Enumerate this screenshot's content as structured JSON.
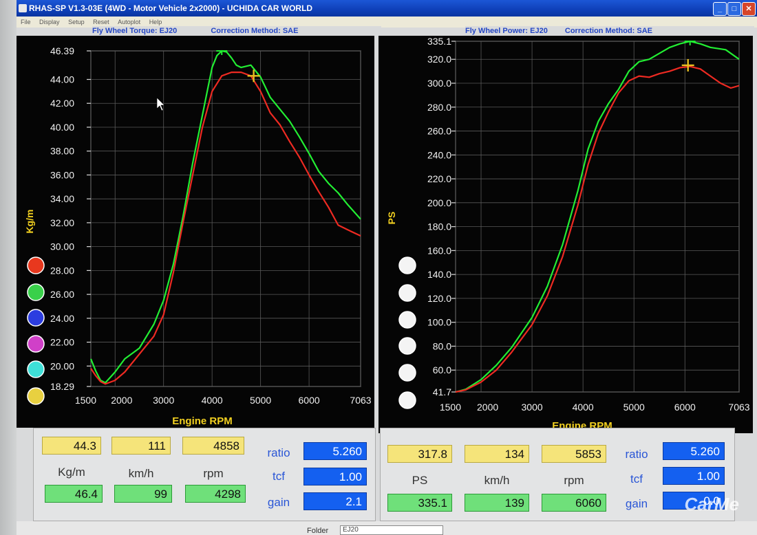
{
  "window": {
    "title": "RHAS-SP V1.3-03E (4WD - Motor Vehicle 2x2000) - UCHIDA CAR WORLD",
    "menu": [
      "File",
      "Display",
      "Setup",
      "Reset",
      "Autoplot",
      "Help"
    ]
  },
  "left_header": {
    "title": "Fly Wheel Torque: EJ20",
    "method": "Correction Method: SAE"
  },
  "right_header": {
    "title": "Fly Wheel Power: EJ20",
    "method": "Correction Method: SAE"
  },
  "colors": {
    "green_curve": "#22ee33",
    "red_curve": "#ee2a22",
    "marker": "#e8c020",
    "axis_label": "#f2d020"
  },
  "legend_dot_colors": [
    "#e8381e",
    "#39d04a",
    "#2c3de0",
    "#d040c8",
    "#3ee0d8",
    "#e8d040"
  ],
  "chart_data": [
    {
      "type": "line",
      "ylabel": "Kg/m",
      "xlabel": "Engine RPM",
      "xlim": [
        1500,
        7063
      ],
      "ylim": [
        18.29,
        46.39
      ],
      "x_ticks": [
        "1500",
        "2000",
        "3000",
        "4000",
        "5000",
        "6000",
        "7063"
      ],
      "y_ticks": [
        "46.39",
        "44.00",
        "42.00",
        "40.00",
        "38.00",
        "36.00",
        "34.00",
        "32.00",
        "30.00",
        "28.00",
        "26.00",
        "24.00",
        "22.00",
        "20.00",
        "18.29"
      ],
      "marker": {
        "x": 4858,
        "y": 44.3
      },
      "series": [
        {
          "color": "green",
          "x": [
            1500,
            1600,
            1700,
            1800,
            2000,
            2200,
            2500,
            2800,
            3000,
            3200,
            3400,
            3600,
            3800,
            3900,
            4000,
            4100,
            4200,
            4300,
            4400,
            4500,
            4600,
            4800,
            5000,
            5200,
            5400,
            5600,
            5800,
            6000,
            6200,
            6400,
            6600,
            6800,
            7063
          ],
          "y": [
            20.6,
            19.6,
            18.8,
            18.6,
            19.5,
            20.6,
            21.5,
            23.5,
            25.5,
            28.5,
            32.5,
            37.0,
            41.0,
            43.0,
            45.0,
            46.0,
            46.39,
            46.3,
            45.8,
            45.2,
            45.0,
            45.2,
            44.2,
            42.5,
            41.5,
            40.5,
            39.2,
            37.8,
            36.3,
            35.3,
            34.5,
            33.5,
            32.3
          ]
        },
        {
          "color": "red",
          "x": [
            1500,
            1600,
            1700,
            1800,
            2000,
            2200,
            2500,
            2800,
            3000,
            3200,
            3400,
            3600,
            3800,
            4000,
            4200,
            4400,
            4600,
            4800,
            5000,
            5200,
            5400,
            5600,
            5800,
            6000,
            6200,
            6400,
            6600,
            6800,
            7063
          ],
          "y": [
            19.8,
            19.2,
            18.7,
            18.5,
            18.8,
            19.5,
            21.0,
            22.5,
            24.3,
            27.8,
            32.0,
            36.0,
            40.0,
            43.0,
            44.3,
            44.6,
            44.6,
            44.3,
            43.0,
            41.2,
            40.2,
            38.8,
            37.5,
            36.0,
            34.6,
            33.3,
            31.8,
            31.4,
            30.9
          ]
        }
      ]
    },
    {
      "type": "line",
      "ylabel": "PS",
      "xlabel": "Engine RPM",
      "xlim": [
        1500,
        7063
      ],
      "ylim": [
        41.7,
        335.1
      ],
      "x_ticks": [
        "1500",
        "2000",
        "3000",
        "4000",
        "5000",
        "6000",
        "7063"
      ],
      "y_ticks": [
        "335.1",
        "320.0",
        "300.0",
        "280.0",
        "260.0",
        "240.0",
        "220.0",
        "200.0",
        "180.0",
        "160.0",
        "140.0",
        "120.0",
        "100.0",
        "80.0",
        "60.0",
        "41.7"
      ],
      "marker": {
        "x": 6060,
        "y": 315.0
      },
      "series": [
        {
          "color": "green",
          "x": [
            1500,
            1700,
            2000,
            2300,
            2600,
            3000,
            3300,
            3600,
            3900,
            4100,
            4300,
            4500,
            4700,
            4900,
            5100,
            5300,
            5500,
            5700,
            5900,
            6100,
            6300,
            6500,
            6800,
            7063
          ],
          "y": [
            41.7,
            44.0,
            52.0,
            64.0,
            79.0,
            104.0,
            130.0,
            165.0,
            210.0,
            245.0,
            268.0,
            283.0,
            295.0,
            310.0,
            318.0,
            320.0,
            325.0,
            330.0,
            333.0,
            335.1,
            333.0,
            330.0,
            328.0,
            320.0
          ]
        },
        {
          "color": "red",
          "x": [
            1500,
            1700,
            2000,
            2300,
            2600,
            3000,
            3300,
            3600,
            3900,
            4100,
            4300,
            4500,
            4700,
            4900,
            5100,
            5300,
            5500,
            5700,
            5900,
            6100,
            6300,
            6500,
            6700,
            6900,
            7063
          ],
          "y": [
            41.7,
            43.5,
            50.0,
            60.0,
            75.0,
            98.0,
            122.0,
            155.0,
            198.0,
            232.0,
            258.0,
            276.0,
            292.0,
            302.0,
            306.0,
            305.0,
            308.0,
            310.0,
            313.0,
            314.0,
            312.0,
            306.0,
            300.0,
            296.0,
            298.0
          ]
        }
      ]
    }
  ],
  "left_readout": {
    "row1": [
      "44.3",
      "111",
      "4858"
    ],
    "labels": [
      "Kg/m",
      "km/h",
      "rpm"
    ],
    "row2": [
      "46.4",
      "99",
      "4298"
    ],
    "params": [
      {
        "label": "ratio",
        "value": "5.260"
      },
      {
        "label": "tcf",
        "value": "1.00"
      },
      {
        "label": "gain",
        "value": "2.1"
      }
    ]
  },
  "right_readout": {
    "row1": [
      "317.8",
      "134",
      "5853"
    ],
    "labels": [
      "PS",
      "km/h",
      "rpm"
    ],
    "row2": [
      "335.1",
      "139",
      "6060"
    ],
    "params": [
      {
        "label": "ratio",
        "value": "5.260"
      },
      {
        "label": "tcf",
        "value": "1.00"
      },
      {
        "label": "gain",
        "value": "0.0"
      }
    ]
  },
  "footer": {
    "folder_label": "Folder",
    "folder_value": "EJ20"
  },
  "watermark": "CarMe"
}
